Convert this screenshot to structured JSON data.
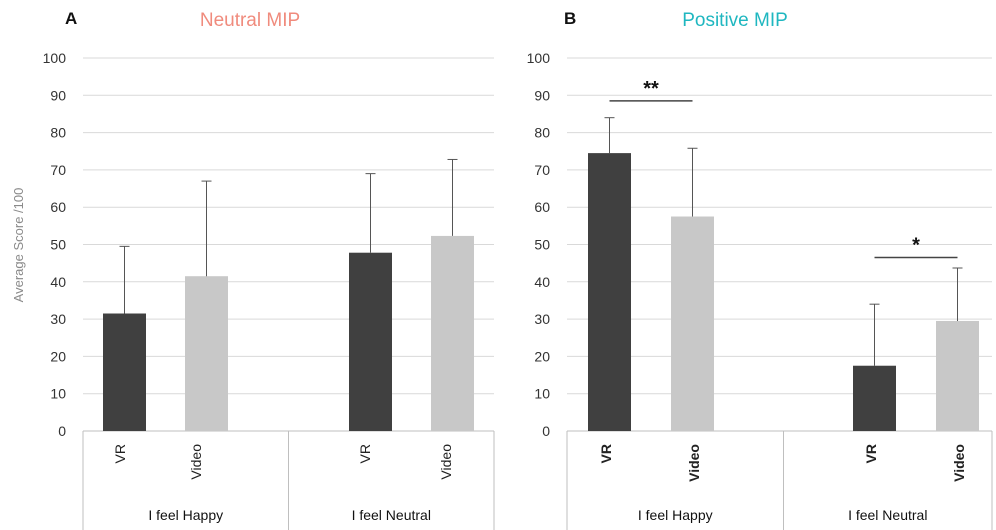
{
  "chart_data": [
    {
      "type": "bar",
      "panel_letter": "A",
      "title": "Neutral MIP",
      "title_color": "#f08b7d",
      "ylabel": "Average Score /100",
      "ylim": [
        0,
        100
      ],
      "yticks": [
        0,
        10,
        20,
        30,
        40,
        50,
        60,
        70,
        80,
        90,
        100
      ],
      "grid": true,
      "groups": [
        "I feel Happy",
        "I feel Neutral"
      ],
      "categories": [
        "VR",
        "Video"
      ],
      "bold_categories": false,
      "series": [
        {
          "name": "VR",
          "color": "#404040",
          "values": [
            31.5,
            47.8
          ],
          "error_upper": [
            49.5,
            69.0
          ]
        },
        {
          "name": "Video",
          "color": "#c8c8c8",
          "values": [
            41.5,
            52.3
          ],
          "error_upper": [
            67.0,
            72.8
          ]
        }
      ],
      "significance": []
    },
    {
      "type": "bar",
      "panel_letter": "B",
      "title": "Positive MIP",
      "title_color": "#1fb7c0",
      "ylabel": "",
      "ylim": [
        0,
        100
      ],
      "yticks": [
        0,
        10,
        20,
        30,
        40,
        50,
        60,
        70,
        80,
        90,
        100
      ],
      "grid": true,
      "groups": [
        "I feel Happy",
        "I feel Neutral"
      ],
      "categories": [
        "VR",
        "Video"
      ],
      "bold_categories": true,
      "series": [
        {
          "name": "VR",
          "color": "#404040",
          "values": [
            74.5,
            17.5
          ],
          "error_upper": [
            84.0,
            34.0
          ]
        },
        {
          "name": "Video",
          "color": "#c8c8c8",
          "values": [
            57.5,
            29.5
          ],
          "error_upper": [
            75.8,
            43.7
          ]
        }
      ],
      "significance": [
        {
          "group": 0,
          "label": "**",
          "y": 88.5
        },
        {
          "group": 1,
          "label": "*",
          "y": 46.5
        }
      ]
    }
  ]
}
